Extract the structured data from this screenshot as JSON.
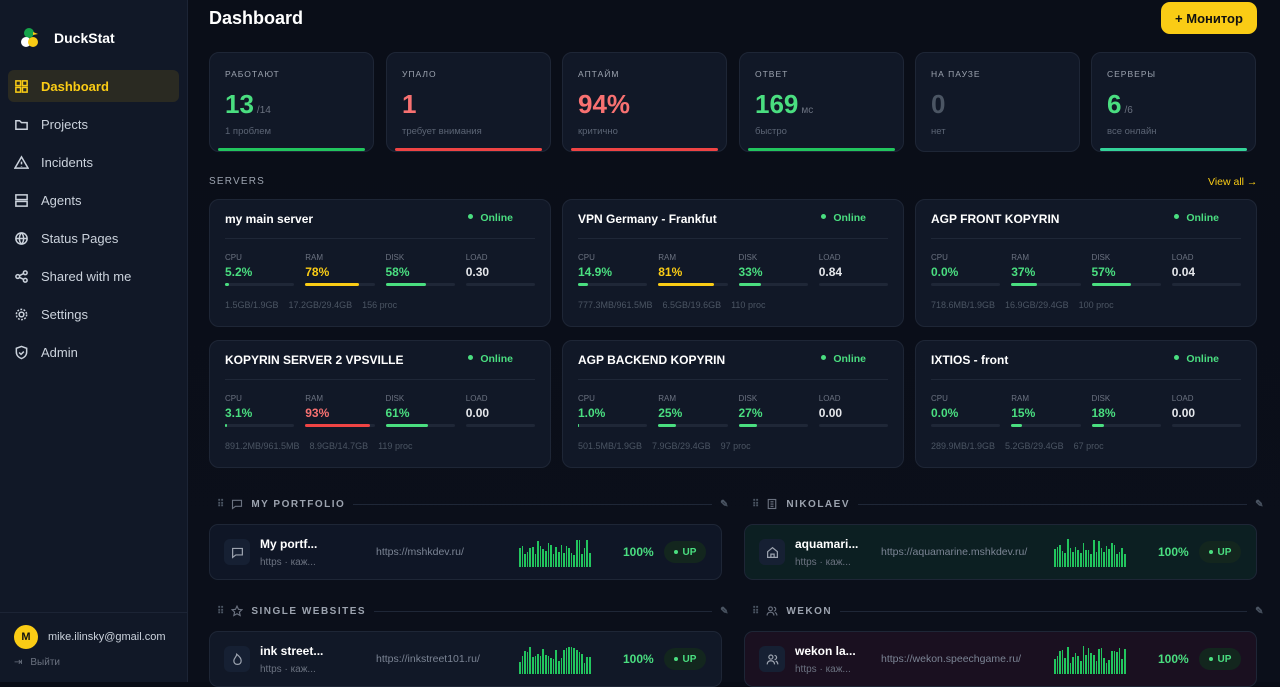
{
  "app": {
    "name": "DuckStat"
  },
  "sidebar": {
    "items": [
      {
        "label": "Dashboard",
        "icon": "grid-icon",
        "active": true
      },
      {
        "label": "Projects",
        "icon": "folder-icon"
      },
      {
        "label": "Incidents",
        "icon": "warning-icon"
      },
      {
        "label": "Agents",
        "icon": "server-icon"
      },
      {
        "label": "Status Pages",
        "icon": "globe-icon"
      },
      {
        "label": "Shared with me",
        "icon": "share-icon"
      },
      {
        "label": "Settings",
        "icon": "gear-icon"
      },
      {
        "label": "Admin",
        "icon": "shield-icon"
      }
    ],
    "user": {
      "initial": "M",
      "email": "mike.ilinsky@gmail.com",
      "logout": "Выйти"
    }
  },
  "header": {
    "title": "Dashboard",
    "add_button": "+ Монитор"
  },
  "stats": [
    {
      "label": "РАБОТАЮТ",
      "value": "13",
      "unit": "/14",
      "sub": "1 проблем",
      "color": "#4ade80",
      "line": "#22c55e"
    },
    {
      "label": "УПАЛО",
      "value": "1",
      "unit": "",
      "sub": "требует внимания",
      "color": "#f87171",
      "line": "#ef4444"
    },
    {
      "label": "АПТАЙМ",
      "value": "94%",
      "unit": "",
      "sub": "критично",
      "color": "#f87171",
      "line": "#ef4444"
    },
    {
      "label": "ОТВЕТ",
      "value": "169",
      "unit": "мс",
      "sub": "быстро",
      "color": "#4ade80",
      "line": "#22c55e"
    },
    {
      "label": "НА ПАУЗЕ",
      "value": "0",
      "unit": "",
      "sub": "нет",
      "color": "#4b5563",
      "line": ""
    },
    {
      "label": "СЕРВЕРЫ",
      "value": "6",
      "unit": "/6",
      "sub": "все онлайн",
      "color": "#4ade80",
      "line": "#34d399"
    }
  ],
  "servers_section": {
    "label": "SERVERS",
    "view_all": "View all →"
  },
  "metric_labels": {
    "cpu": "CPU",
    "ram": "RAM",
    "disk": "DISK",
    "load": "LOAD"
  },
  "servers": [
    {
      "name": "my main server",
      "status": "Online",
      "cpu": 5.2,
      "cpu_text": "5.2%",
      "ram": 78,
      "ram_text": "78%",
      "disk": 58,
      "disk_text": "58%",
      "load": "0.30",
      "mem": "1.5GB/1.9GB",
      "storage": "17.2GB/29.4GB",
      "procs": "156 proc"
    },
    {
      "name": "VPN Germany - Frankfut",
      "status": "Online",
      "cpu": 14.9,
      "cpu_text": "14.9%",
      "ram": 81,
      "ram_text": "81%",
      "disk": 33,
      "disk_text": "33%",
      "load": "0.84",
      "mem": "777.3MB/961.5MB",
      "storage": "6.5GB/19.6GB",
      "procs": "110 proc"
    },
    {
      "name": "AGP FRONT KOPYRIN",
      "status": "Online",
      "cpu": 0,
      "cpu_text": "0.0%",
      "ram": 37,
      "ram_text": "37%",
      "disk": 57,
      "disk_text": "57%",
      "load": "0.04",
      "mem": "718.6MB/1.9GB",
      "storage": "16.9GB/29.4GB",
      "procs": "100 proc"
    },
    {
      "name": "KOPYRIN SERVER 2 VPSVILLE",
      "status": "Online",
      "cpu": 3.1,
      "cpu_text": "3.1%",
      "ram": 93,
      "ram_text": "93%",
      "disk": 61,
      "disk_text": "61%",
      "load": "0.00",
      "mem": "891.2MB/961.5MB",
      "storage": "8.9GB/14.7GB",
      "procs": "119 proc"
    },
    {
      "name": "AGP BACKEND KOPYRIN",
      "status": "Online",
      "cpu": 1.0,
      "cpu_text": "1.0%",
      "ram": 25,
      "ram_text": "25%",
      "disk": 27,
      "disk_text": "27%",
      "load": "0.00",
      "mem": "501.5MB/1.9GB",
      "storage": "7.9GB/29.4GB",
      "procs": "97 proc"
    },
    {
      "name": "IXTIOS - front",
      "status": "Online",
      "cpu": 0,
      "cpu_text": "0.0%",
      "ram": 15,
      "ram_text": "15%",
      "disk": 18,
      "disk_text": "18%",
      "load": "0.00",
      "mem": "289.9MB/1.9GB",
      "storage": "5.2GB/29.4GB",
      "procs": "67 proc"
    }
  ],
  "groups": [
    {
      "name": "MY PORTFOLIO",
      "icon": "message-icon",
      "monitor": {
        "name": "My portf...",
        "sub": "https · каж...",
        "url": "https://mshkdev.ru/",
        "uptime": "100%",
        "status": "UP",
        "icon": "message-icon",
        "bg": "#0f1626"
      }
    },
    {
      "name": "NIKOLAEV",
      "icon": "building-icon",
      "monitor": {
        "name": "aquamari...",
        "sub": "https · каж...",
        "url": "https://aquamarine.mshkdev.ru/",
        "uptime": "100%",
        "status": "UP",
        "icon": "home-icon",
        "bg": "#0c1f22"
      }
    },
    {
      "name": "SINGLE WEBSITES",
      "icon": "star-icon",
      "monitor": {
        "name": "ink street...",
        "sub": "https · каж...",
        "url": "https://inkstreet101.ru/",
        "uptime": "100%",
        "status": "UP",
        "icon": "flame-icon",
        "bg": "#111827"
      }
    },
    {
      "name": "WEKON",
      "icon": "users-icon",
      "monitor": {
        "name": "wekon la...",
        "sub": "https · каж...",
        "url": "https://wekon.speechgame.ru/",
        "uptime": "100%",
        "status": "UP",
        "icon": "users-icon",
        "bg": "#1a1020"
      }
    }
  ]
}
